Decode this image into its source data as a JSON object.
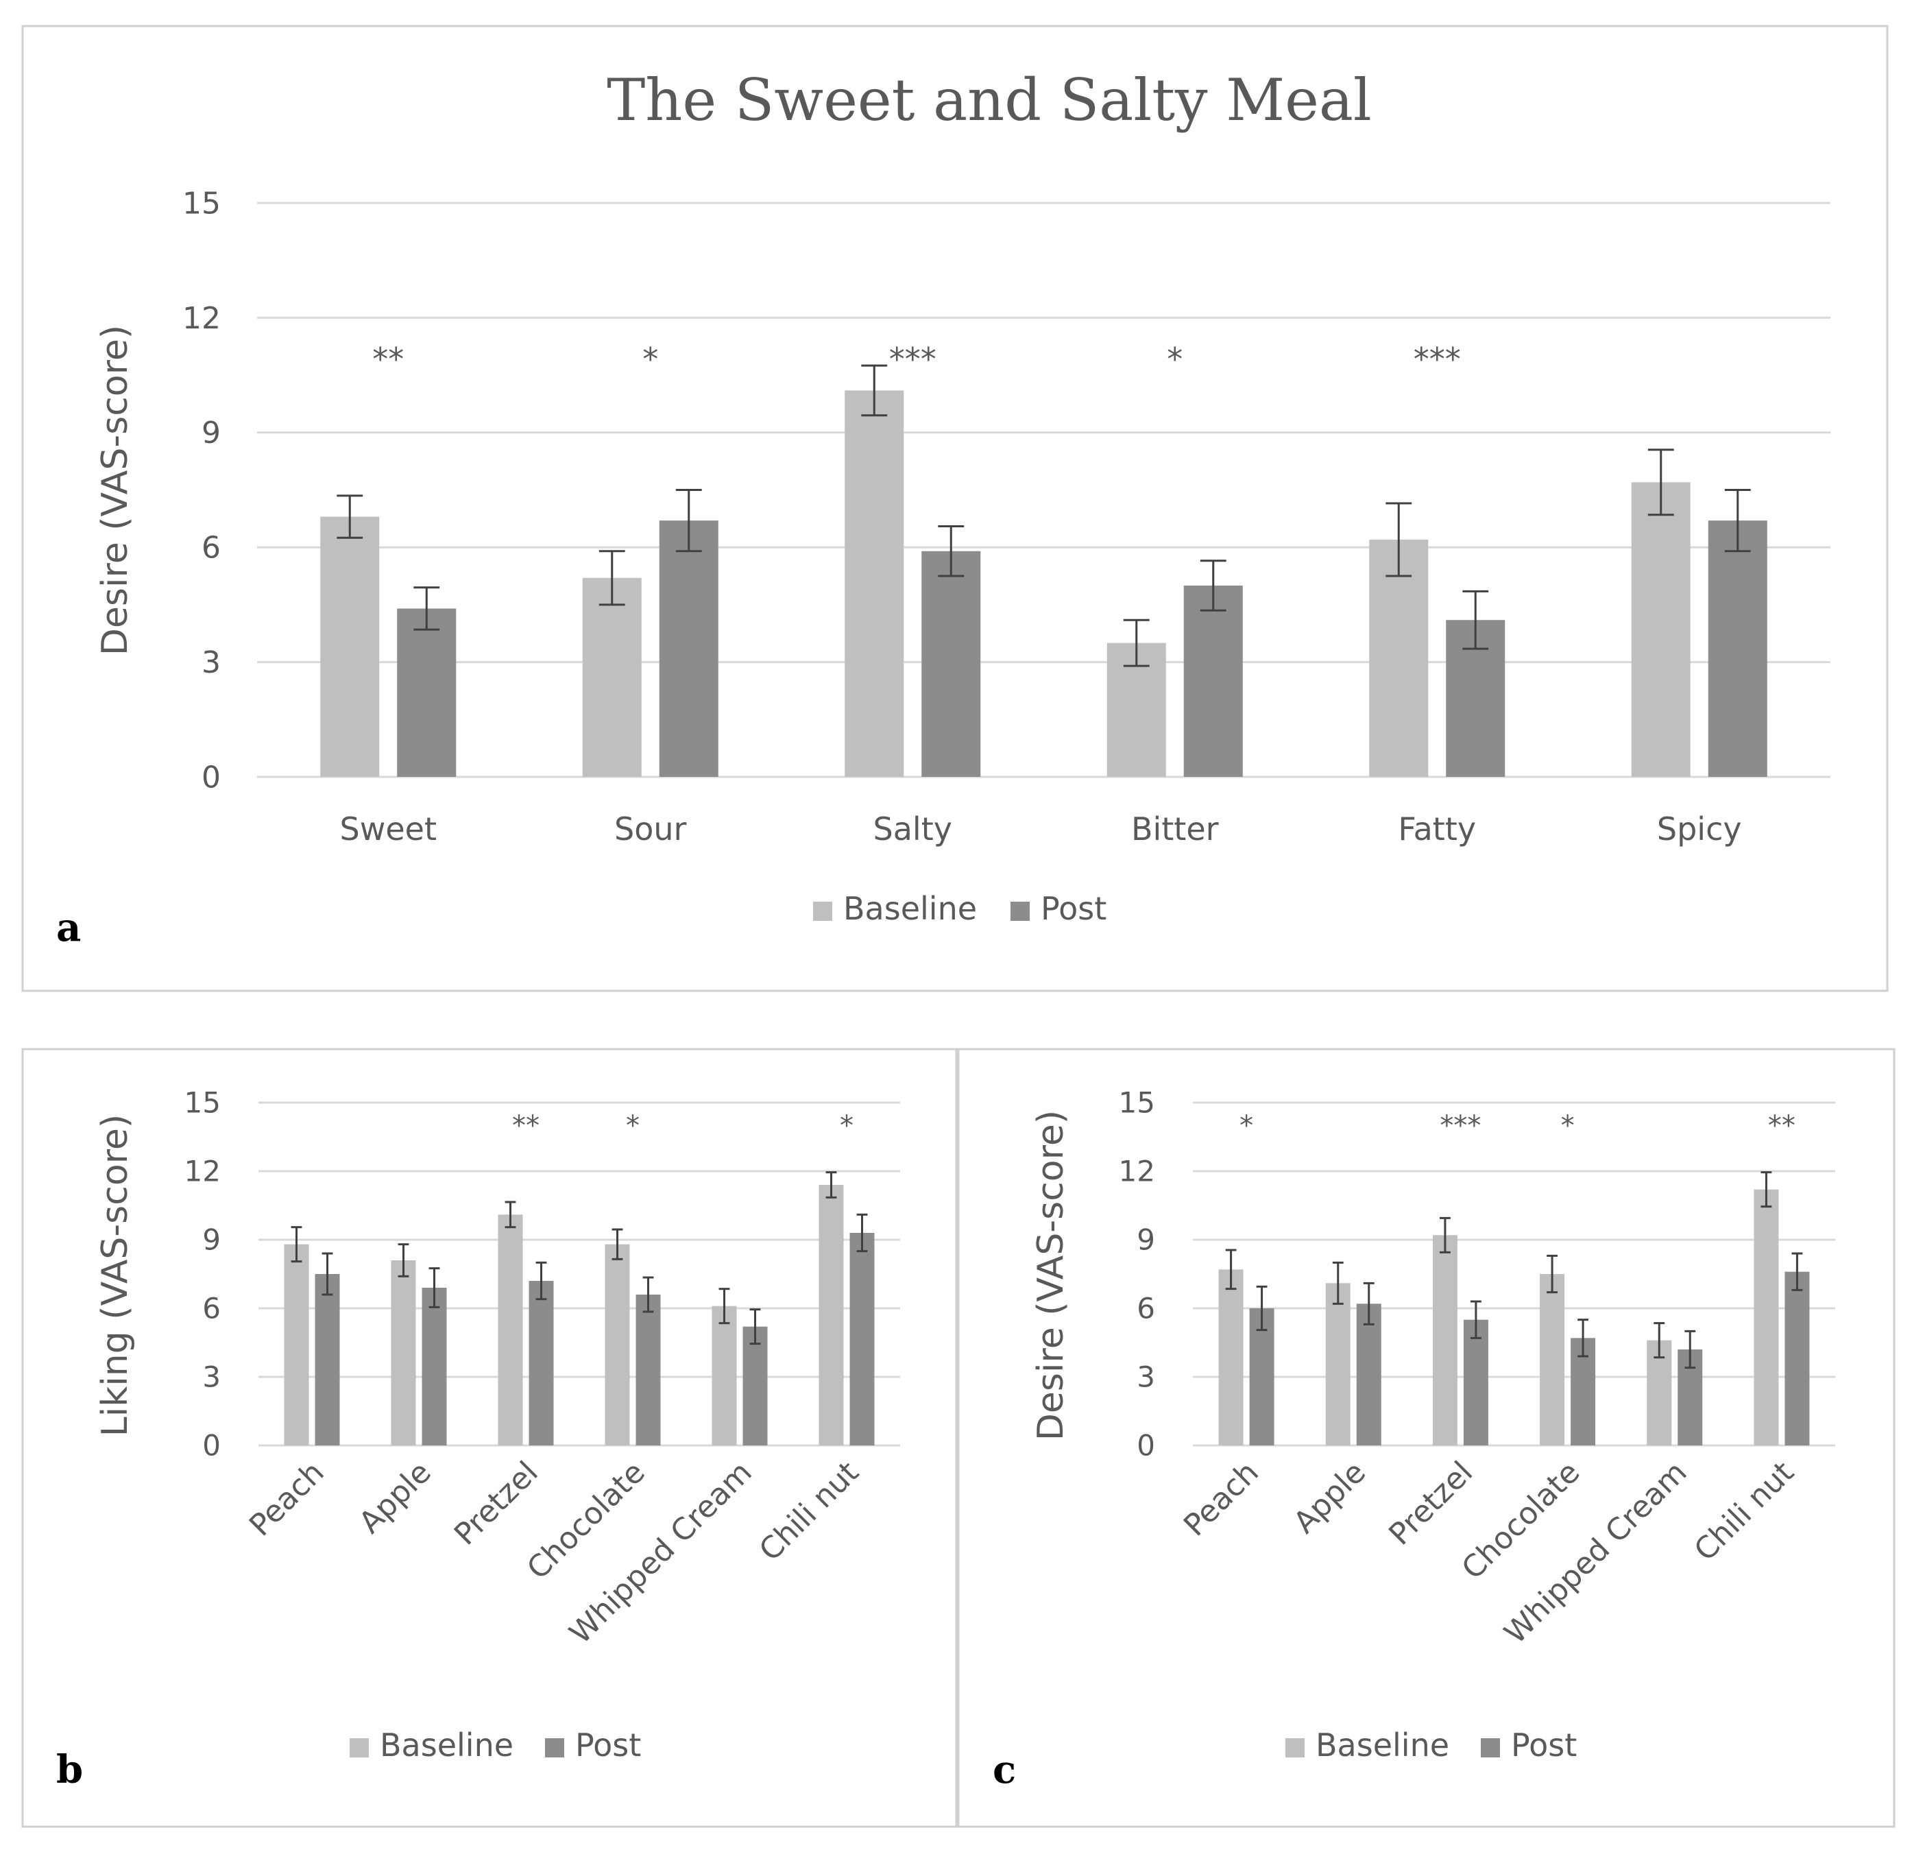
{
  "colors": {
    "baseline": "#bfbfbf",
    "post": "#8c8c8c",
    "grid": "#d9d9d9",
    "errorbar": "#404040",
    "frame": "#d0d0d0"
  },
  "chart_data": [
    {
      "panel": "a",
      "type": "bar",
      "title": "The Sweet and Salty Meal",
      "ylabel": "Desire (VAS-score)",
      "xlabel": "",
      "ylim": [
        0,
        15
      ],
      "yticks": [
        0,
        3,
        6,
        9,
        12,
        15
      ],
      "grid": true,
      "legend_position": "bottom",
      "categories": [
        "Sweet",
        "Sour",
        "Salty",
        "Bitter",
        "Fatty",
        "Spicy"
      ],
      "series": [
        {
          "name": "Baseline",
          "values": [
            6.8,
            5.2,
            10.1,
            3.5,
            6.2,
            7.7
          ],
          "errors": [
            0.55,
            0.7,
            0.65,
            0.6,
            0.95,
            0.85
          ]
        },
        {
          "name": "Post",
          "values": [
            4.4,
            6.7,
            5.9,
            5.0,
            4.1,
            6.7
          ],
          "errors": [
            0.55,
            0.8,
            0.65,
            0.65,
            0.75,
            0.8
          ]
        }
      ],
      "significance": [
        "**",
        "*",
        "***",
        "*",
        "***",
        ""
      ]
    },
    {
      "panel": "b",
      "type": "bar",
      "title": "",
      "ylabel": "Liking (VAS-score)",
      "xlabel": "",
      "ylim": [
        0,
        15
      ],
      "yticks": [
        0,
        3,
        6,
        9,
        12,
        15
      ],
      "grid": true,
      "legend_position": "bottom",
      "categories": [
        "Peach",
        "Apple",
        "Pretzel",
        "Chocolate",
        "Whipped Cream",
        "Chili nut"
      ],
      "series": [
        {
          "name": "Baseline",
          "values": [
            8.8,
            8.1,
            10.1,
            8.8,
            6.1,
            11.4
          ],
          "errors": [
            0.75,
            0.7,
            0.55,
            0.65,
            0.75,
            0.55
          ]
        },
        {
          "name": "Post",
          "values": [
            7.5,
            6.9,
            7.2,
            6.6,
            5.2,
            9.3
          ],
          "errors": [
            0.9,
            0.85,
            0.8,
            0.75,
            0.75,
            0.8
          ]
        }
      ],
      "significance": [
        "",
        "",
        "**",
        "*",
        "",
        "*"
      ]
    },
    {
      "panel": "c",
      "type": "bar",
      "title": "",
      "ylabel": "Desire (VAS-score)",
      "xlabel": "",
      "ylim": [
        0,
        15
      ],
      "yticks": [
        0,
        3,
        6,
        9,
        12,
        15
      ],
      "grid": true,
      "legend_position": "bottom",
      "categories": [
        "Peach",
        "Apple",
        "Pretzel",
        "Chocolate",
        "Whipped Cream",
        "Chili nut"
      ],
      "series": [
        {
          "name": "Baseline",
          "values": [
            7.7,
            7.1,
            9.2,
            7.5,
            4.6,
            11.2
          ],
          "errors": [
            0.85,
            0.9,
            0.75,
            0.8,
            0.75,
            0.75
          ]
        },
        {
          "name": "Post",
          "values": [
            6.0,
            6.2,
            5.5,
            4.7,
            4.2,
            7.6
          ],
          "errors": [
            0.95,
            0.9,
            0.8,
            0.8,
            0.8,
            0.8
          ]
        }
      ],
      "significance": [
        "*",
        "",
        "***",
        "*",
        "",
        "**"
      ]
    }
  ]
}
